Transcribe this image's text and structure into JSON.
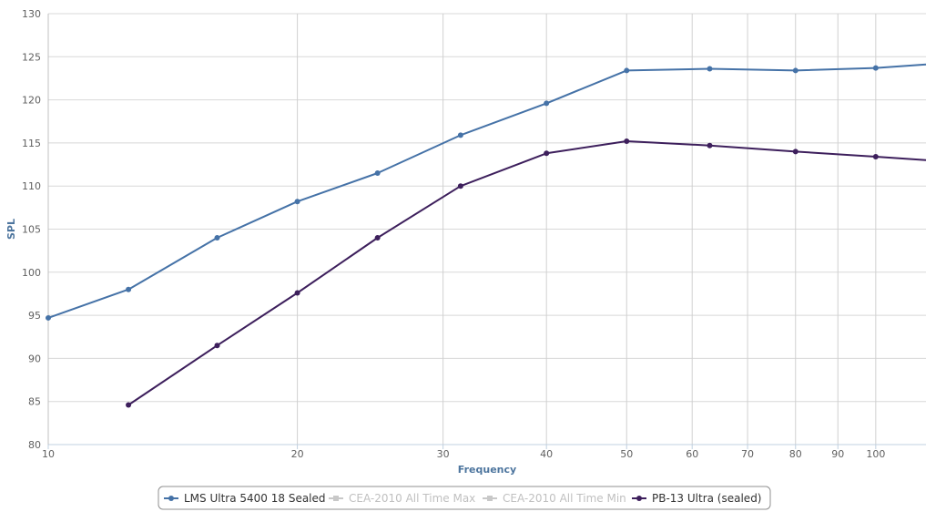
{
  "chart_data": {
    "type": "line",
    "xlabel": "Frequency",
    "ylabel": "SPL",
    "x_scale": "log",
    "xlim": [
      10,
      115
    ],
    "ylim": [
      80,
      130
    ],
    "x_ticks": [
      10,
      20,
      30,
      40,
      50,
      60,
      70,
      80,
      90,
      100
    ],
    "y_ticks": [
      80,
      85,
      90,
      95,
      100,
      105,
      110,
      115,
      120,
      125,
      130
    ],
    "grid": true,
    "legend_position": "bottom-center",
    "series": [
      {
        "name": "LMS Ultra 5400 18 Sealed",
        "color": "#4572a7",
        "visible": true,
        "points": [
          [
            10,
            94.7
          ],
          [
            12.5,
            98.0
          ],
          [
            16,
            104.0
          ],
          [
            20,
            108.2
          ],
          [
            25,
            111.5
          ],
          [
            31.5,
            115.9
          ],
          [
            40,
            119.6
          ],
          [
            50,
            123.4
          ],
          [
            63,
            123.6
          ],
          [
            80,
            123.4
          ],
          [
            100,
            123.7
          ],
          [
            115,
            124.1
          ]
        ]
      },
      {
        "name": "CEA-2010 All Time Max",
        "color": "#c8c8c8",
        "visible": false,
        "points": []
      },
      {
        "name": "CEA-2010 All Time Min",
        "color": "#c8c8c8",
        "visible": false,
        "points": []
      },
      {
        "name": "PB-13 Ultra (sealed)",
        "color": "#3d1f5c",
        "visible": true,
        "points": [
          [
            12.5,
            84.6
          ],
          [
            16,
            91.5
          ],
          [
            20,
            97.6
          ],
          [
            25,
            104.0
          ],
          [
            31.5,
            110.0
          ],
          [
            40,
            113.8
          ],
          [
            50,
            115.2
          ],
          [
            63,
            114.7
          ],
          [
            80,
            114.0
          ],
          [
            100,
            113.4
          ],
          [
            115,
            113.0
          ]
        ]
      }
    ]
  }
}
